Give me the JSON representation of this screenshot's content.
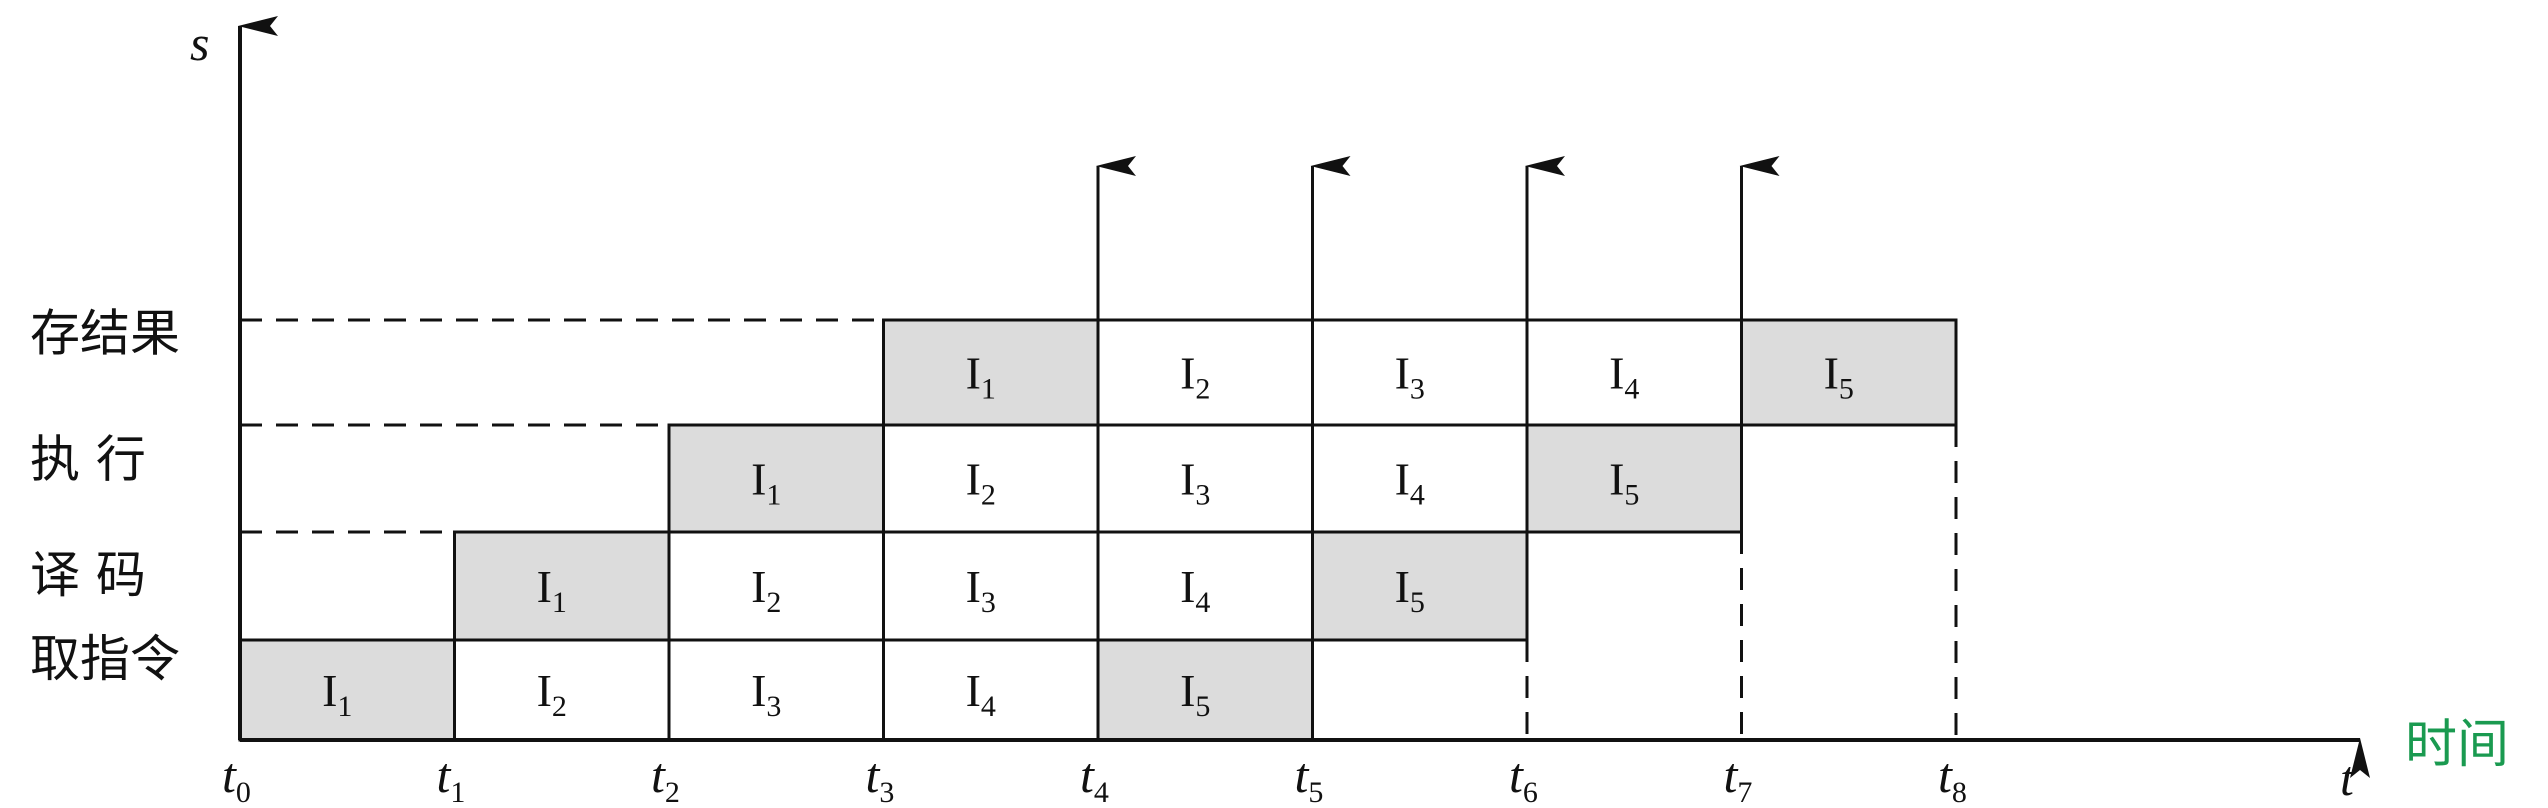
{
  "axis": {
    "y_name": "s",
    "x_name": "t",
    "x_caption": "时间"
  },
  "stages": [
    "取指令",
    "译 码",
    "执 行",
    "存结果"
  ],
  "time_ticks": [
    {
      "base": "t",
      "sub": "0"
    },
    {
      "base": "t",
      "sub": "1"
    },
    {
      "base": "t",
      "sub": "2"
    },
    {
      "base": "t",
      "sub": "3"
    },
    {
      "base": "t",
      "sub": "4"
    },
    {
      "base": "t",
      "sub": "5"
    },
    {
      "base": "t",
      "sub": "6"
    },
    {
      "base": "t",
      "sub": "7"
    },
    {
      "base": "t",
      "sub": "8"
    }
  ],
  "instructions": [
    {
      "base": "I",
      "sub": "1"
    },
    {
      "base": "I",
      "sub": "2"
    },
    {
      "base": "I",
      "sub": "3"
    },
    {
      "base": "I",
      "sub": "4"
    },
    {
      "base": "I",
      "sub": "5"
    }
  ],
  "stage_durations_periods": [
    1,
    1,
    1,
    1
  ],
  "rows": [
    {
      "stage": 0,
      "cells": [
        {
          "instr": 0,
          "start": 0,
          "end": 1,
          "shaded": true
        },
        {
          "instr": 1,
          "start": 1,
          "end": 2
        },
        {
          "instr": 2,
          "start": 2,
          "end": 3
        },
        {
          "instr": 3,
          "start": 3,
          "end": 4
        },
        {
          "instr": 4,
          "start": 4,
          "end": 5,
          "shaded": true
        }
      ]
    },
    {
      "stage": 1,
      "cells": [
        {
          "instr": 0,
          "start": 1,
          "end": 2,
          "shaded": true
        },
        {
          "instr": 1,
          "start": 2,
          "end": 3
        },
        {
          "instr": 2,
          "start": 3,
          "end": 4
        },
        {
          "instr": 3,
          "start": 4,
          "end": 5
        },
        {
          "instr": 4,
          "start": 5,
          "end": 6,
          "shaded": true
        }
      ]
    },
    {
      "stage": 2,
      "cells": [
        {
          "instr": 0,
          "start": 2,
          "end": 3,
          "shaded": true
        },
        {
          "instr": 1,
          "start": 3,
          "end": 4
        },
        {
          "instr": 2,
          "start": 4,
          "end": 5
        },
        {
          "instr": 3,
          "start": 5,
          "end": 6
        },
        {
          "instr": 4,
          "start": 6,
          "end": 7,
          "shaded": true
        }
      ]
    },
    {
      "stage": 3,
      "cells": [
        {
          "instr": 0,
          "start": 3,
          "end": 4,
          "shaded": true
        },
        {
          "instr": 1,
          "start": 4,
          "end": 5
        },
        {
          "instr": 2,
          "start": 5,
          "end": 6
        },
        {
          "instr": 3,
          "start": 6,
          "end": 7
        },
        {
          "instr": 4,
          "start": 7,
          "end": 8,
          "shaded": true
        }
      ]
    }
  ],
  "completion_arrows_at": [
    4,
    5,
    6,
    7
  ],
  "colors": {
    "shade": "#dcdcdc",
    "line": "#111111",
    "caption": "#1a9a50"
  }
}
